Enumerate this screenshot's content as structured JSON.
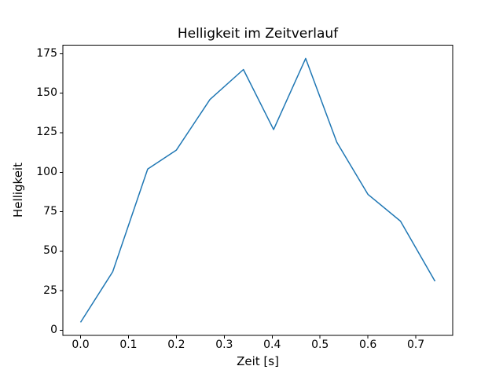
{
  "chart_data": {
    "type": "line",
    "title": "Helligkeit im Zeitverlauf",
    "xlabel": "Zeit [s]",
    "ylabel": "Helligkeit",
    "x": [
      0.0,
      0.067,
      0.14,
      0.2,
      0.27,
      0.34,
      0.403,
      0.47,
      0.535,
      0.6,
      0.668,
      0.74
    ],
    "y": [
      5,
      37,
      102,
      114,
      146,
      165,
      127,
      172,
      119,
      86,
      69,
      31
    ],
    "xlim": [
      -0.037,
      0.777
    ],
    "ylim": [
      -3.35,
      180.35
    ],
    "xticks": [
      0.0,
      0.1,
      0.2,
      0.3,
      0.4,
      0.5,
      0.6,
      0.7
    ],
    "xtick_labels": [
      "0.0",
      "0.1",
      "0.2",
      "0.3",
      "0.4",
      "0.5",
      "0.6",
      "0.7"
    ],
    "yticks": [
      0,
      25,
      50,
      75,
      100,
      125,
      150,
      175
    ],
    "ytick_labels": [
      "0",
      "25",
      "50",
      "75",
      "100",
      "125",
      "150",
      "175"
    ],
    "line_color": "#1f77b4",
    "spine_color": "#000000",
    "grid": false,
    "legend": null
  }
}
